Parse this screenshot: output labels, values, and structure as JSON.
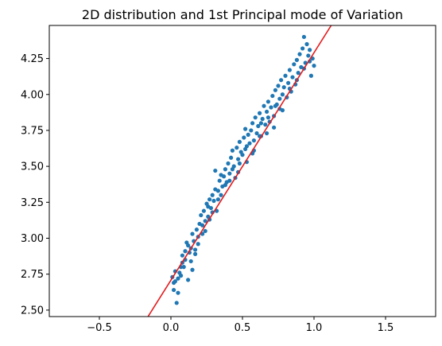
{
  "chart_data": {
    "type": "scatter",
    "title": "2D distribution and 1st Principal mode of Variation",
    "xlabel": "",
    "ylabel": "",
    "xlim": [
      -0.85,
      1.85
    ],
    "ylim": [
      2.455,
      4.48
    ],
    "xticks": [
      {
        "value": -0.5,
        "label": "−0.5"
      },
      {
        "value": 0.0,
        "label": "0.0"
      },
      {
        "value": 0.5,
        "label": "0.5"
      },
      {
        "value": 1.0,
        "label": "1.0"
      },
      {
        "value": 1.5,
        "label": "1.5"
      }
    ],
    "yticks": [
      {
        "value": 2.5,
        "label": "2.50"
      },
      {
        "value": 2.75,
        "label": "2.75"
      },
      {
        "value": 3.0,
        "label": "3.00"
      },
      {
        "value": 3.25,
        "label": "3.25"
      },
      {
        "value": 3.5,
        "label": "3.50"
      },
      {
        "value": 3.75,
        "label": "3.75"
      },
      {
        "value": 4.0,
        "label": "4.00"
      },
      {
        "value": 4.25,
        "label": "4.25"
      }
    ],
    "grid": false,
    "legend": "none",
    "scatter_series": {
      "color": "#1f77b4",
      "points": [
        [
          0.02,
          2.69
        ],
        [
          0.03,
          2.77
        ],
        [
          0.04,
          2.55
        ],
        [
          0.02,
          2.64
        ],
        [
          0.05,
          2.72
        ],
        [
          0.06,
          2.76
        ],
        [
          0.07,
          2.74
        ],
        [
          0.08,
          2.88
        ],
        [
          0.09,
          2.8
        ],
        [
          0.1,
          2.85
        ],
        [
          0.11,
          2.97
        ],
        [
          0.12,
          2.71
        ],
        [
          0.13,
          2.9
        ],
        [
          0.14,
          2.93
        ],
        [
          0.15,
          3.03
        ],
        [
          0.16,
          2.98
        ],
        [
          0.17,
          2.92
        ],
        [
          0.18,
          3.06
        ],
        [
          0.19,
          2.96
        ],
        [
          0.2,
          3.1
        ],
        [
          0.21,
          3.16
        ],
        [
          0.22,
          3.03
        ],
        [
          0.23,
          3.19
        ],
        [
          0.24,
          3.12
        ],
        [
          0.25,
          3.24
        ],
        [
          0.26,
          3.15
        ],
        [
          0.27,
          3.27
        ],
        [
          0.28,
          3.21
        ],
        [
          0.29,
          3.3
        ],
        [
          0.3,
          3.26
        ],
        [
          0.31,
          3.47
        ],
        [
          0.32,
          3.19
        ],
        [
          0.33,
          3.33
        ],
        [
          0.34,
          3.4
        ],
        [
          0.35,
          3.3
        ],
        [
          0.36,
          3.36
        ],
        [
          0.37,
          3.43
        ],
        [
          0.38,
          3.48
        ],
        [
          0.39,
          3.39
        ],
        [
          0.4,
          3.52
        ],
        [
          0.41,
          3.45
        ],
        [
          0.42,
          3.56
        ],
        [
          0.43,
          3.61
        ],
        [
          0.44,
          3.5
        ],
        [
          0.45,
          3.42
        ],
        [
          0.46,
          3.63
        ],
        [
          0.47,
          3.55
        ],
        [
          0.48,
          3.67
        ],
        [
          0.49,
          3.6
        ],
        [
          0.5,
          3.58
        ],
        [
          0.51,
          3.7
        ],
        [
          0.52,
          3.62
        ],
        [
          0.53,
          3.53
        ],
        [
          0.54,
          3.72
        ],
        [
          0.55,
          3.66
        ],
        [
          0.56,
          3.75
        ],
        [
          0.57,
          3.8
        ],
        [
          0.58,
          3.68
        ],
        [
          0.59,
          3.84
        ],
        [
          0.6,
          3.73
        ],
        [
          0.61,
          3.78
        ],
        [
          0.62,
          3.87
        ],
        [
          0.63,
          3.71
        ],
        [
          0.64,
          3.83
        ],
        [
          0.65,
          3.92
        ],
        [
          0.66,
          3.79
        ],
        [
          0.67,
          3.88
        ],
        [
          0.68,
          3.95
        ],
        [
          0.69,
          3.81
        ],
        [
          0.7,
          3.91
        ],
        [
          0.71,
          3.99
        ],
        [
          0.72,
          3.85
        ],
        [
          0.73,
          4.03
        ],
        [
          0.74,
          3.93
        ],
        [
          0.75,
          4.06
        ],
        [
          0.76,
          3.97
        ],
        [
          0.77,
          4.1
        ],
        [
          0.78,
          3.89
        ],
        [
          0.79,
          4.05
        ],
        [
          0.8,
          4.13
        ],
        [
          0.81,
          3.98
        ],
        [
          0.82,
          4.08
        ],
        [
          0.83,
          4.17
        ],
        [
          0.84,
          4.02
        ],
        [
          0.85,
          4.12
        ],
        [
          0.86,
          4.21
        ],
        [
          0.87,
          4.07
        ],
        [
          0.88,
          4.24
        ],
        [
          0.89,
          4.15
        ],
        [
          0.9,
          4.28
        ],
        [
          0.91,
          4.19
        ],
        [
          0.92,
          4.32
        ],
        [
          0.93,
          4.4
        ],
        [
          0.94,
          4.22
        ],
        [
          0.95,
          4.35
        ],
        [
          0.96,
          4.27
        ],
        [
          0.97,
          4.31
        ],
        [
          0.98,
          4.13
        ],
        [
          0.99,
          4.25
        ],
        [
          1.0,
          4.2
        ],
        [
          0.05,
          2.62
        ],
        [
          0.08,
          2.83
        ],
        [
          0.12,
          2.95
        ],
        [
          0.17,
          2.89
        ],
        [
          0.22,
          3.09
        ],
        [
          0.27,
          3.13
        ],
        [
          0.33,
          3.27
        ],
        [
          0.38,
          3.37
        ],
        [
          0.43,
          3.48
        ],
        [
          0.48,
          3.52
        ],
        [
          0.53,
          3.64
        ],
        [
          0.58,
          3.61
        ],
        [
          0.63,
          3.8
        ],
        [
          0.68,
          3.84
        ],
        [
          0.73,
          3.92
        ],
        [
          0.78,
          4.0
        ],
        [
          0.83,
          4.04
        ],
        [
          0.88,
          4.1
        ],
        [
          0.93,
          4.18
        ],
        [
          0.97,
          4.23
        ],
        [
          0.29,
          3.18
        ],
        [
          0.35,
          3.44
        ],
        [
          0.41,
          3.4
        ],
        [
          0.47,
          3.46
        ],
        [
          0.52,
          3.76
        ],
        [
          0.57,
          3.59
        ],
        [
          0.62,
          3.71
        ],
        [
          0.67,
          3.73
        ],
        [
          0.72,
          3.77
        ],
        [
          0.76,
          3.9
        ],
        [
          0.14,
          2.84
        ],
        [
          0.19,
          3.01
        ],
        [
          0.24,
          3.05
        ],
        [
          0.15,
          2.78
        ],
        [
          0.1,
          2.91
        ],
        [
          0.07,
          2.8
        ],
        [
          0.03,
          2.7
        ],
        [
          0.01,
          2.73
        ],
        [
          0.26,
          3.22
        ],
        [
          0.31,
          3.34
        ]
      ]
    },
    "line_series": {
      "color": "#e41a1c",
      "points": [
        [
          -0.16,
          2.455
        ],
        [
          1.12,
          4.48
        ]
      ]
    }
  }
}
